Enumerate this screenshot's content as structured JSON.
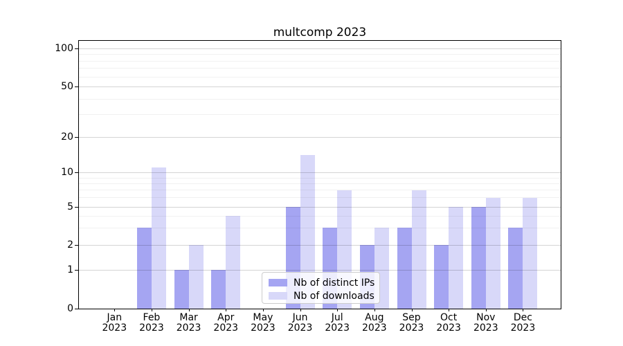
{
  "chart_data": {
    "type": "bar",
    "title": "multcomp 2023",
    "year": "2023",
    "months": [
      "Jan",
      "Feb",
      "Mar",
      "Apr",
      "May",
      "Jun",
      "Jul",
      "Aug",
      "Sep",
      "Oct",
      "Nov",
      "Dec"
    ],
    "categories": [
      "Jan 2023",
      "Feb 2023",
      "Mar 2023",
      "Apr 2023",
      "May 2023",
      "Jun 2023",
      "Jul 2023",
      "Aug 2023",
      "Sep 2023",
      "Oct 2023",
      "Nov 2023",
      "Dec 2023"
    ],
    "series": [
      {
        "name": "Nb of distinct IPs",
        "color": "#a5a5f2",
        "values": [
          0,
          3,
          1,
          1,
          0,
          5,
          3,
          2,
          3,
          2,
          5,
          3
        ]
      },
      {
        "name": "Nb of downloads",
        "color": "#d8d8f9",
        "values": [
          0,
          11,
          2,
          4,
          0,
          14,
          7,
          3,
          7,
          5,
          6,
          6
        ]
      }
    ],
    "y_axis": {
      "scale": "asinh",
      "major_ticks": [
        0,
        1,
        2,
        5,
        10,
        20,
        50,
        100
      ],
      "minor_ticks": [
        3,
        4,
        6,
        7,
        8,
        9,
        30,
        40,
        60,
        70,
        80,
        90
      ],
      "ylim": [
        0,
        110
      ]
    },
    "legend_position": "lower center",
    "grid": "on"
  }
}
